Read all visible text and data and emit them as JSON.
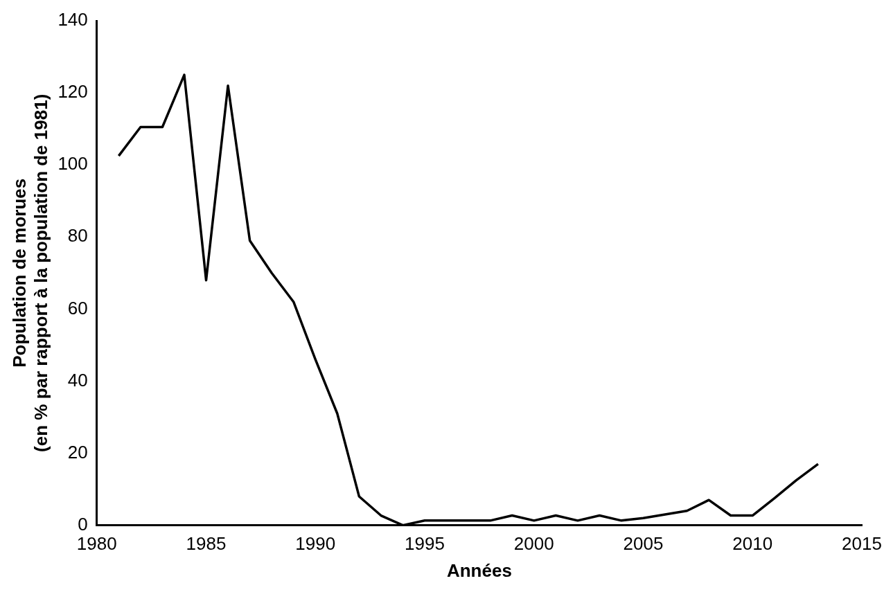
{
  "chart_data": {
    "type": "line",
    "xlabel": "Années",
    "ylabel": "Population de morues\n(en % par rapport à la population de 1981)",
    "x": [
      1981,
      1982,
      1983,
      1984,
      1985,
      1986,
      1987,
      1988,
      1989,
      1990,
      1991,
      1992,
      1993,
      1994,
      1995,
      1996,
      1997,
      1998,
      1999,
      2000,
      2001,
      2002,
      2003,
      2004,
      2005,
      2006,
      2007,
      2008,
      2009,
      2010,
      2011,
      2012,
      2013
    ],
    "series": [
      {
        "color": "#000000",
        "values": [
          102.5,
          110.5,
          110.5,
          125,
          68,
          122,
          79,
          70,
          62,
          46,
          31,
          8,
          2.7,
          0,
          1.3,
          1.3,
          1.3,
          1.3,
          2.7,
          1.3,
          2.7,
          1.3,
          2.7,
          1.3,
          2,
          3,
          4,
          7,
          2.7,
          2.7,
          7.5,
          12.5,
          17
        ]
      }
    ],
    "xlim": [
      1980,
      2015
    ],
    "xticks": [
      1980,
      1985,
      1990,
      1995,
      2000,
      2005,
      2010,
      2015
    ],
    "ylim": [
      0,
      140
    ],
    "yticks": [
      0,
      20,
      40,
      60,
      80,
      100,
      120,
      140
    ],
    "grid": false,
    "legend": false,
    "marker": "none",
    "line_style": "solid"
  }
}
